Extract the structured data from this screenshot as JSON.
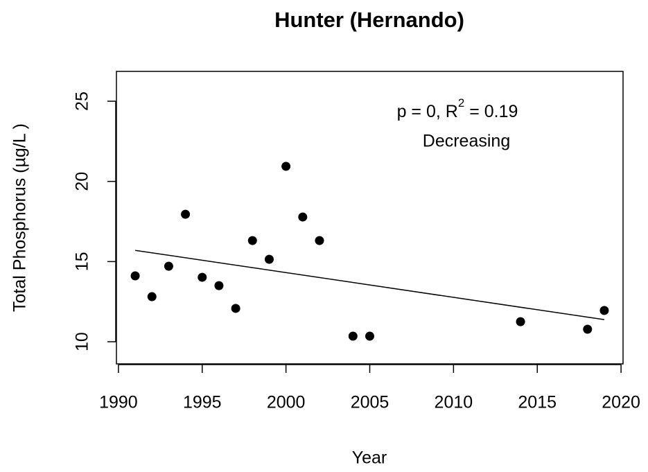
{
  "chart_data": {
    "type": "scatter",
    "title": "Hunter (Hernando)",
    "x_label": "Year",
    "y_label": "Total Phosphorus (µg/L )",
    "annotation": {
      "main": "p = 0, R",
      "superscript": "2",
      "tail": " = 0.19",
      "trend": "Decreasing"
    },
    "x": [
      1991,
      1992,
      1993,
      1994,
      1995,
      1996,
      1997,
      1998,
      1999,
      2000,
      2001,
      2002,
      2004,
      2005,
      2014,
      2018,
      2019
    ],
    "series": [
      {
        "color": "#000000",
        "values": [
          14.11,
          12.81,
          14.71,
          17.95,
          14.02,
          13.5,
          12.08,
          16.31,
          15.14,
          20.94,
          17.78,
          16.31,
          10.35,
          10.35,
          11.25,
          10.78,
          11.95
        ]
      }
    ],
    "trend_line": {
      "x": [
        1991,
        2019
      ],
      "values": [
        15.7,
        11.38
      ],
      "color": "#000000"
    },
    "xlim": [
      1989.88,
      2020.12
    ],
    "ylim": [
      8.62,
      26.86
    ],
    "xticks": [
      1990,
      1995,
      2000,
      2005,
      2010,
      2015,
      2020
    ],
    "yticks": [
      10,
      15,
      20,
      25
    ]
  }
}
